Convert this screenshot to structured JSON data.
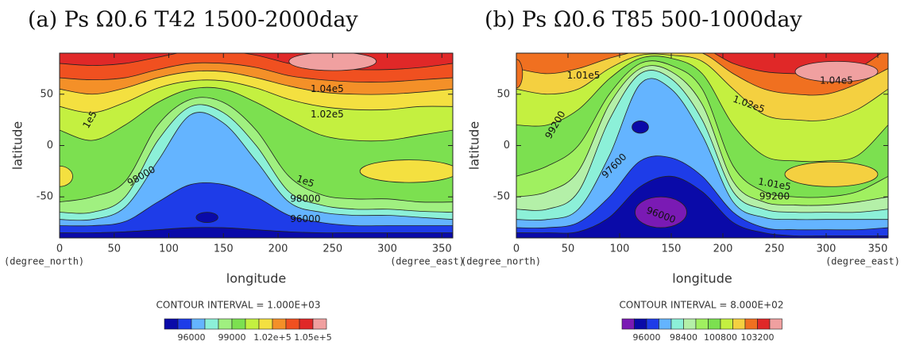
{
  "chart_data": [
    {
      "type": "contour",
      "title": "(a) Ps Ω0.6 T42 1500-2000day",
      "xlabel": "longitude",
      "ylabel": "latitude",
      "xunit_label": "(degree_east)",
      "yunit_label": "(degree_north)",
      "xlim": [
        0,
        360
      ],
      "ylim": [
        -90,
        90
      ],
      "xticks": [
        0,
        50,
        100,
        150,
        200,
        250,
        300,
        350
      ],
      "yticks": [
        -50,
        0,
        50
      ],
      "contour_interval_text": "CONTOUR INTERVAL = 1.000E+03",
      "colorbar": {
        "colors": [
          "#0a0aa8",
          "#1e3ce8",
          "#64b4ff",
          "#8cf0d8",
          "#a0f080",
          "#7ce050",
          "#c4f040",
          "#f4e040",
          "#f49028",
          "#f05020",
          "#e02828",
          "#f0a0a0"
        ],
        "levels": [
          95000,
          96000,
          97000,
          98000,
          99000,
          100000,
          101000,
          102000,
          103000,
          104000,
          105000
        ],
        "ticks": [
          96000,
          99000,
          {
            "value": 102000,
            "label": "1.02e+5"
          },
          {
            "value": 105000,
            "label": "1.05e+5"
          }
        ]
      },
      "contour_labels": [
        {
          "value": 104000,
          "label": "1.04e5"
        },
        {
          "value": 102000,
          "label": "1.02e5"
        },
        {
          "value": 100000,
          "label": "1e5"
        },
        98000,
        {
          "value": 100000,
          "label": "1e5"
        },
        98000,
        96000
      ]
    },
    {
      "type": "contour",
      "title": "(b) Ps Ω0.6 T85 500-1000day",
      "xlabel": "longitude",
      "ylabel": "latitude",
      "xunit_label": "(degree_east)",
      "yunit_label": "(degree_north)",
      "xlim": [
        0,
        360
      ],
      "ylim": [
        -90,
        90
      ],
      "xticks": [
        0,
        50,
        100,
        150,
        200,
        250,
        300,
        350
      ],
      "yticks": [
        -50,
        0,
        50
      ],
      "contour_interval_text": "CONTOUR INTERVAL = 8.000E+02",
      "colorbar": {
        "colors": [
          "#7a1ab4",
          "#0a0aa8",
          "#1e3ce8",
          "#64b4ff",
          "#8cf0d8",
          "#b4f0a8",
          "#a0f060",
          "#7ce050",
          "#c4f040",
          "#f4d040",
          "#f07020",
          "#e02828",
          "#f0a0a0"
        ],
        "levels": [
          95200,
          96000,
          96800,
          97600,
          98400,
          99200,
          100000,
          100800,
          101600,
          102400,
          103200,
          104000
        ],
        "ticks": [
          96000,
          98400,
          100800,
          103200
        ]
      },
      "contour_labels": [
        {
          "value": 101000,
          "label": "1.01e5"
        },
        {
          "value": 102000,
          "label": "1.02e5"
        },
        {
          "value": 104000,
          "label": "1.04e5"
        },
        99200,
        97600,
        {
          "value": 101000,
          "label": "1.01e5"
        },
        99200,
        96000
      ]
    }
  ]
}
